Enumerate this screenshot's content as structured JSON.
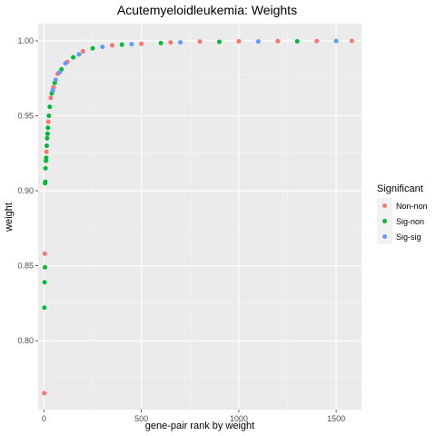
{
  "chart_data": {
    "type": "scatter",
    "title": "Acutemyeloidleukemia: Weights",
    "xlabel": "gene-pair rank by weight",
    "ylabel": "weight",
    "xlim": [
      -30,
      1630
    ],
    "ylim": [
      0.754,
      1.0115
    ],
    "x_ticks": [
      0,
      500,
      1000,
      1500
    ],
    "y_ticks": [
      0.8,
      0.85,
      0.9,
      0.95,
      1.0
    ],
    "x_tick_labels": [
      "0",
      "500",
      "1000",
      "1500"
    ],
    "y_tick_labels": [
      "0.80",
      "0.85",
      "0.90",
      "0.95",
      "1.00"
    ],
    "grid": true,
    "legend": {
      "title": "Significant",
      "placement": "right",
      "entries": [
        {
          "name": "Non-non",
          "color": "#F8766D"
        },
        {
          "name": "Sig-non",
          "color": "#00BA38"
        },
        {
          "name": "Sig-sig",
          "color": "#619CFF"
        }
      ]
    },
    "series": [
      {
        "name": "Non-non",
        "color": "#F8766D",
        "points": [
          [
            1,
            0.765
          ],
          [
            4,
            0.858
          ],
          [
            12,
            0.926
          ],
          [
            22,
            0.946
          ],
          [
            35,
            0.962
          ],
          [
            48,
            0.969
          ],
          [
            70,
            0.978
          ],
          [
            120,
            0.986
          ],
          [
            200,
            0.993
          ],
          [
            350,
            0.997
          ],
          [
            500,
            0.998
          ],
          [
            650,
            0.999
          ],
          [
            800,
            0.9995
          ],
          [
            1000,
            0.9997
          ],
          [
            1200,
            0.9998
          ],
          [
            1400,
            0.9999
          ],
          [
            1580,
            0.9999
          ]
        ]
      },
      {
        "name": "Sig-non",
        "color": "#00BA38",
        "points": [
          [
            2,
            0.822
          ],
          [
            3,
            0.839
          ],
          [
            5,
            0.849
          ],
          [
            6,
            0.905
          ],
          [
            7,
            0.906
          ],
          [
            8,
            0.915
          ],
          [
            10,
            0.92
          ],
          [
            11,
            0.922
          ],
          [
            14,
            0.93
          ],
          [
            16,
            0.935
          ],
          [
            18,
            0.938
          ],
          [
            20,
            0.942
          ],
          [
            25,
            0.95
          ],
          [
            30,
            0.956
          ],
          [
            40,
            0.965
          ],
          [
            55,
            0.972
          ],
          [
            90,
            0.981
          ],
          [
            150,
            0.989
          ],
          [
            250,
            0.995
          ],
          [
            400,
            0.9975
          ],
          [
            600,
            0.9985
          ],
          [
            900,
            0.9993
          ],
          [
            1300,
            0.9997
          ]
        ]
      },
      {
        "name": "Sig-sig",
        "color": "#619CFF",
        "points": [
          [
            45,
            0.967
          ],
          [
            60,
            0.974
          ],
          [
            80,
            0.979
          ],
          [
            110,
            0.985
          ],
          [
            180,
            0.991
          ],
          [
            300,
            0.996
          ],
          [
            450,
            0.9978
          ],
          [
            700,
            0.999
          ],
          [
            1100,
            0.9996
          ],
          [
            1500,
            0.9999
          ]
        ]
      }
    ]
  }
}
